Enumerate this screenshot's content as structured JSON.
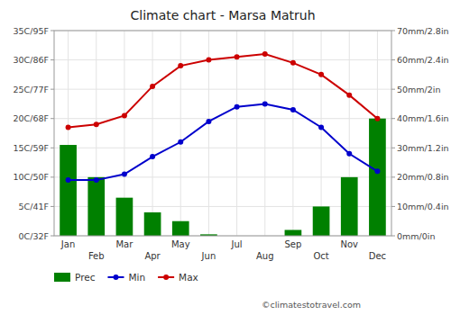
{
  "chart_data": {
    "type": "bar",
    "title": "Climate chart - Marsa Matruh",
    "categories": [
      "Jan",
      "Feb",
      "Mar",
      "Apr",
      "May",
      "Jun",
      "Jul",
      "Aug",
      "Sep",
      "Oct",
      "Nov",
      "Dec"
    ],
    "series": [
      {
        "name": "Prec",
        "type": "bar",
        "axis": "y2",
        "color": "#008000",
        "values": [
          31,
          20,
          13,
          8,
          5,
          0.5,
          0,
          0,
          2,
          10,
          20,
          40
        ]
      },
      {
        "name": "Min",
        "type": "line",
        "marker": "circle",
        "line_style": "solid",
        "color": "#0000cc",
        "values": [
          9.5,
          9.5,
          10.5,
          13.5,
          16.0,
          19.5,
          22.0,
          22.5,
          21.5,
          18.5,
          14.0,
          11.0
        ]
      },
      {
        "name": "Max",
        "type": "line",
        "marker": "circle",
        "line_style": "solid",
        "color": "#cc0000",
        "values": [
          18.5,
          19.0,
          20.5,
          25.5,
          29.0,
          30.0,
          30.5,
          31.0,
          29.5,
          27.5,
          24.0,
          20.0
        ]
      }
    ],
    "ylim": [
      0,
      35
    ],
    "yticks": [
      {
        "value": 0,
        "label": "0C/32F"
      },
      {
        "value": 5,
        "label": "5C/41F"
      },
      {
        "value": 10,
        "label": "10C/50F"
      },
      {
        "value": 15,
        "label": "15C/59F"
      },
      {
        "value": 20,
        "label": "20C/68F"
      },
      {
        "value": 25,
        "label": "25C/77F"
      },
      {
        "value": 30,
        "label": "30C/86F"
      },
      {
        "value": 35,
        "label": "35C/95F"
      }
    ],
    "y2lim": [
      0,
      70
    ],
    "y2ticks": [
      {
        "value": 0,
        "label": "0mm/0in"
      },
      {
        "value": 10,
        "label": "10mm/0.4in"
      },
      {
        "value": 20,
        "label": "20mm/0.8in"
      },
      {
        "value": 30,
        "label": "30mm/1.2in"
      },
      {
        "value": 40,
        "label": "40mm/1.6in"
      },
      {
        "value": 50,
        "label": "50mm/2in"
      },
      {
        "value": 60,
        "label": "60mm/2.4in"
      },
      {
        "value": 70,
        "label": "70mm/2.8in"
      }
    ],
    "grid": true,
    "legend": "bottom-left",
    "annotations": [
      "©climatestotravel.com"
    ]
  }
}
